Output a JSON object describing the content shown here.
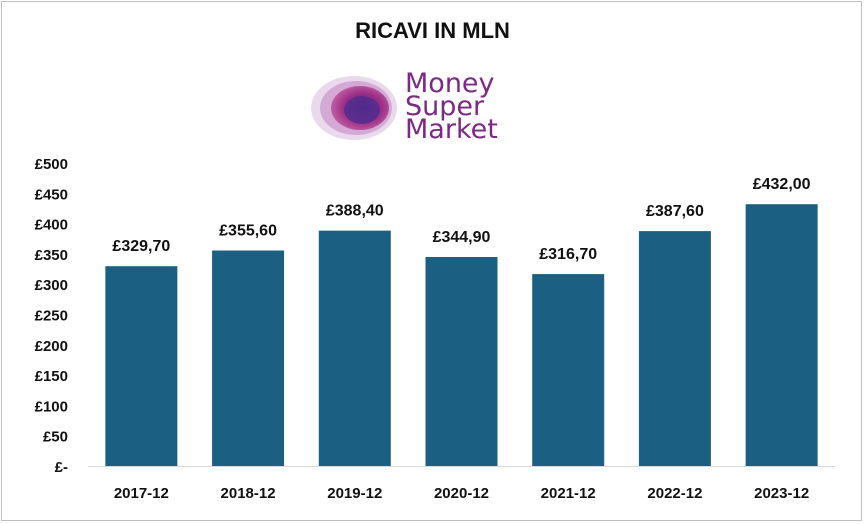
{
  "chart_data": {
    "type": "bar",
    "title": "RICAVI IN MLN",
    "categories": [
      "2017-12",
      "2018-12",
      "2019-12",
      "2020-12",
      "2021-12",
      "2022-12",
      "2023-12"
    ],
    "values": [
      329.7,
      355.6,
      388.4,
      344.9,
      316.7,
      387.6,
      432.0
    ],
    "value_labels": [
      "£329,70",
      "£355,60",
      "£388,40",
      "£344,90",
      "£316,70",
      "£387,60",
      "£432,00"
    ],
    "yticks": [
      "£-",
      "£50",
      "£100",
      "£150",
      "£200",
      "£250",
      "£300",
      "£350",
      "£400",
      "£450",
      "£500"
    ],
    "ylim": [
      0,
      500
    ],
    "grid": false,
    "legend": "none",
    "bar_color": "#1b6082"
  },
  "logo": {
    "lines": [
      "Money",
      "Super",
      "Market"
    ],
    "text_color": "#7a2a82"
  }
}
